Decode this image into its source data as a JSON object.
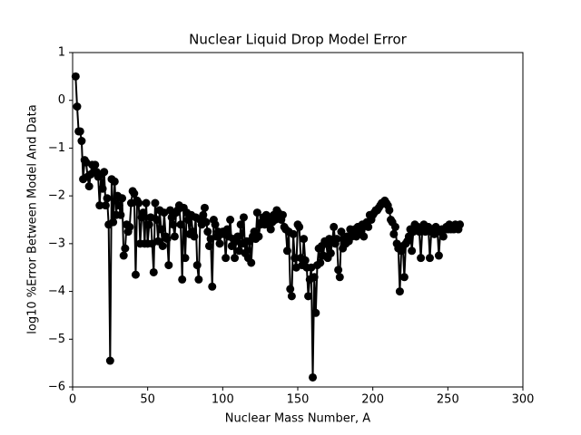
{
  "chart_data": {
    "type": "line",
    "title": "Nuclear Liquid Drop Model Error",
    "x_label": "Nuclear Mass Number, A",
    "y_label": "log10 %Error Between Model And Data",
    "xlim": [
      0,
      300
    ],
    "xticks": [
      0,
      50,
      100,
      150,
      200,
      250,
      300
    ],
    "ylim": [
      -6,
      1
    ],
    "yticks": [
      {
        "value": -6,
        "label": "−6"
      },
      {
        "value": -5,
        "label": "−5"
      },
      {
        "value": -4,
        "label": "−4"
      },
      {
        "value": -3,
        "label": "−3"
      },
      {
        "value": -2,
        "label": "−2"
      },
      {
        "value": -1,
        "label": "−1"
      },
      0,
      1
    ],
    "grid": false,
    "x": [
      2,
      3,
      4,
      5,
      6,
      7,
      8,
      9,
      10,
      11,
      12,
      13,
      14,
      15,
      16,
      17,
      18,
      19,
      20,
      21,
      22,
      23,
      24,
      25,
      26,
      27,
      28,
      29,
      30,
      31,
      32,
      33,
      34,
      35,
      36,
      37,
      38,
      39,
      40,
      41,
      42,
      43,
      44,
      45,
      46,
      47,
      48,
      49,
      50,
      51,
      52,
      53,
      54,
      55,
      56,
      57,
      58,
      59,
      60,
      61,
      62,
      63,
      64,
      65,
      66,
      67,
      68,
      69,
      70,
      71,
      72,
      73,
      74,
      75,
      76,
      77,
      78,
      79,
      80,
      81,
      82,
      83,
      84,
      85,
      86,
      87,
      88,
      89,
      90,
      91,
      92,
      93,
      94,
      95,
      96,
      97,
      98,
      99,
      100,
      101,
      102,
      103,
      104,
      105,
      106,
      107,
      108,
      109,
      110,
      111,
      112,
      113,
      114,
      115,
      116,
      117,
      118,
      119,
      120,
      121,
      122,
      123,
      124,
      125,
      126,
      127,
      128,
      129,
      130,
      131,
      132,
      133,
      134,
      135,
      136,
      137,
      138,
      139,
      140,
      141,
      142,
      143,
      144,
      145,
      146,
      147,
      148,
      149,
      150,
      151,
      152,
      153,
      154,
      155,
      156,
      157,
      158,
      159,
      160,
      161,
      162,
      163,
      164,
      165,
      166,
      167,
      168,
      169,
      170,
      171,
      172,
      173,
      174,
      175,
      176,
      177,
      178,
      179,
      180,
      181,
      182,
      183,
      184,
      185,
      186,
      187,
      188,
      189,
      190,
      191,
      192,
      193,
      194,
      195,
      196,
      197,
      198,
      199,
      200,
      201,
      202,
      203,
      204,
      205,
      206,
      207,
      208,
      209,
      210,
      211,
      212,
      213,
      214,
      215,
      216,
      217,
      218,
      219,
      220,
      221,
      222,
      223,
      224,
      225,
      226,
      227,
      228,
      229,
      230,
      231,
      232,
      233,
      234,
      235,
      236,
      237,
      238,
      239,
      240,
      241,
      242,
      243,
      244,
      245,
      246,
      247,
      248,
      249,
      250,
      251,
      252,
      253,
      254,
      255,
      256,
      257,
      258
    ],
    "series": [
      {
        "color": "#000000",
        "values": [
          0.5,
          -0.13,
          -0.65,
          -0.65,
          -0.85,
          -1.65,
          -1.25,
          -1.3,
          -1.6,
          -1.8,
          -1.55,
          -1.35,
          -1.5,
          -1.35,
          -1.5,
          -1.6,
          -2.2,
          -1.55,
          -1.85,
          -1.5,
          -2.2,
          -2.05,
          -2.6,
          -5.45,
          -1.65,
          -2.55,
          -1.7,
          -2.4,
          -2.0,
          -2.2,
          -2.4,
          -2.05,
          -3.25,
          -3.1,
          -2.6,
          -2.75,
          -2.65,
          -2.15,
          -1.9,
          -1.95,
          -3.65,
          -2.1,
          -2.15,
          -3.0,
          -2.45,
          -2.35,
          -3.0,
          -2.15,
          -3.0,
          -2.6,
          -2.45,
          -3.0,
          -3.6,
          -2.15,
          -2.5,
          -2.95,
          -2.3,
          -2.7,
          -3.05,
          -2.35,
          -2.85,
          -2.9,
          -3.45,
          -2.3,
          -2.45,
          -2.6,
          -2.85,
          -2.35,
          -2.3,
          -2.2,
          -2.6,
          -3.75,
          -2.25,
          -3.3,
          -2.35,
          -2.5,
          -2.8,
          -2.4,
          -2.75,
          -2.85,
          -2.45,
          -3.45,
          -3.75,
          -2.5,
          -2.6,
          -2.4,
          -2.25,
          -2.55,
          -2.75,
          -3.05,
          -2.9,
          -3.9,
          -2.5,
          -2.6,
          -2.85,
          -2.75,
          -3.0,
          -2.8,
          -2.75,
          -2.8,
          -3.3,
          -2.7,
          -2.85,
          -2.5,
          -3.05,
          -2.9,
          -3.3,
          -2.95,
          -2.85,
          -3.15,
          -2.6,
          -3.0,
          -2.45,
          -3.2,
          -2.95,
          -3.3,
          -2.95,
          -3.4,
          -2.85,
          -2.75,
          -2.9,
          -2.35,
          -2.85,
          -2.6,
          -2.55,
          -2.45,
          -2.6,
          -2.4,
          -2.5,
          -2.6,
          -2.7,
          -2.55,
          -2.4,
          -2.5,
          -2.3,
          -2.35,
          -2.4,
          -2.5,
          -2.4,
          -2.65,
          -2.7,
          -3.15,
          -2.75,
          -3.95,
          -4.1,
          -2.8,
          -3.3,
          -3.5,
          -2.6,
          -2.65,
          -3.3,
          -3.45,
          -2.9,
          -3.35,
          -3.5,
          -4.1,
          -3.75,
          -3.5,
          -5.8,
          -3.7,
          -4.45,
          -3.45,
          -3.1,
          -3.4,
          -3.05,
          -3.25,
          -2.95,
          -3.0,
          -3.3,
          -2.9,
          -3.2,
          -2.95,
          -2.65,
          -3.0,
          -2.9,
          -3.55,
          -3.7,
          -2.75,
          -3.1,
          -2.9,
          -3.0,
          -2.85,
          -2.95,
          -2.7,
          -2.85,
          -2.8,
          -2.7,
          -2.85,
          -2.65,
          -2.8,
          -2.7,
          -2.6,
          -2.85,
          -2.6,
          -2.55,
          -2.65,
          -2.4,
          -2.5,
          -2.4,
          -2.35,
          -2.3,
          -2.3,
          -2.25,
          -2.2,
          -2.15,
          -2.15,
          -2.1,
          -2.15,
          -2.2,
          -2.3,
          -2.5,
          -2.55,
          -2.8,
          -2.65,
          -3.0,
          -3.1,
          -4.0,
          -3.15,
          -3.05,
          -3.7,
          -3.0,
          -2.95,
          -2.85,
          -2.7,
          -3.15,
          -2.75,
          -2.6,
          -2.7,
          -2.65,
          -2.75,
          -3.3,
          -2.7,
          -2.6,
          -2.75,
          -2.7,
          -2.65,
          -3.3,
          -2.75,
          -2.7,
          -2.8,
          -2.65,
          -2.7,
          -3.25,
          -2.75,
          -2.7,
          -2.85,
          -2.7,
          -2.65,
          -2.7,
          -2.6,
          -2.7,
          -2.65,
          -2.7,
          -2.6,
          -2.65,
          -2.7,
          -2.6
        ]
      }
    ]
  }
}
